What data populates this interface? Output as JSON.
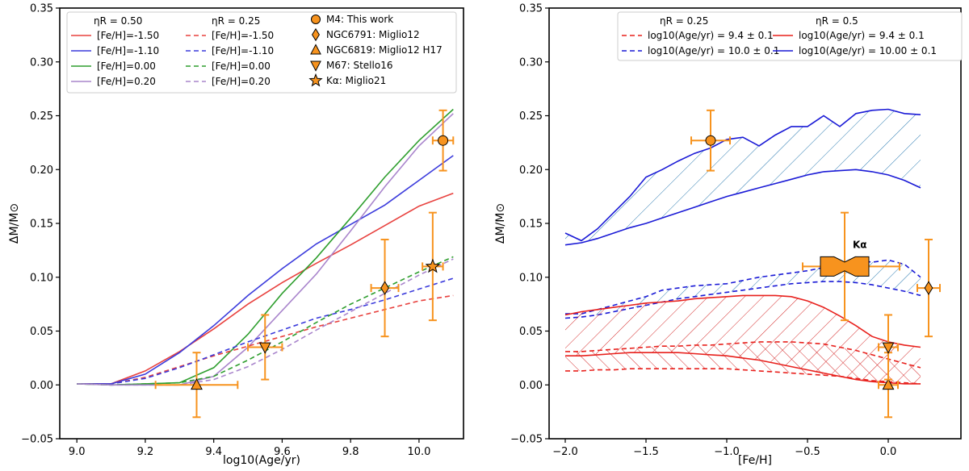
{
  "chart_data": [
    {
      "id": "left",
      "type": "line",
      "xlabel": "log10(Age/yr)",
      "ylabel": "ΔM/M⊙",
      "xlim": [
        8.95,
        10.13
      ],
      "ylim": [
        -0.05,
        0.35
      ],
      "xticks": [
        "9.0",
        "9.2",
        "9.4",
        "9.6",
        "9.8",
        "10.0"
      ],
      "xtick_values": [
        9.0,
        9.2,
        9.4,
        9.6,
        9.8,
        10.0
      ],
      "yticks": [
        "−0.05",
        "0.00",
        "0.05",
        "0.10",
        "0.15",
        "0.20",
        "0.25",
        "0.30",
        "0.35"
      ],
      "ytick_values": [
        -0.05,
        0.0,
        0.05,
        0.1,
        0.15,
        0.2,
        0.25,
        0.3,
        0.35
      ],
      "legend_headers": [
        "ηR = 0.50",
        "ηR = 0.25"
      ],
      "series": [
        {
          "name": "[Fe/H]=-1.50",
          "group": "ηR = 0.50",
          "color": "#e8423f",
          "dash": false,
          "x": [
            9.0,
            9.1,
            9.2,
            9.3,
            9.4,
            9.5,
            9.6,
            9.7,
            9.8,
            9.9,
            10.0,
            10.1
          ],
          "y": [
            0.001,
            0.001,
            0.013,
            0.031,
            0.052,
            0.075,
            0.095,
            0.113,
            0.13,
            0.148,
            0.166,
            0.178
          ]
        },
        {
          "name": "[Fe/H]=-1.10",
          "group": "ηR = 0.50",
          "color": "#3b3bdc",
          "dash": false,
          "x": [
            9.0,
            9.1,
            9.2,
            9.3,
            9.4,
            9.5,
            9.6,
            9.7,
            9.8,
            9.9,
            10.0,
            10.1
          ],
          "y": [
            0.001,
            0.001,
            0.01,
            0.03,
            0.055,
            0.083,
            0.108,
            0.131,
            0.149,
            0.167,
            0.19,
            0.213
          ]
        },
        {
          "name": "[Fe/H]=0.00",
          "group": "ηR = 0.50",
          "color": "#2e9e2e",
          "dash": false,
          "x": [
            9.0,
            9.1,
            9.2,
            9.3,
            9.4,
            9.5,
            9.6,
            9.7,
            9.8,
            9.9,
            10.0,
            10.1
          ],
          "y": [
            0.001,
            0.0,
            0.001,
            0.002,
            0.016,
            0.047,
            0.085,
            0.118,
            0.155,
            0.193,
            0.227,
            0.256
          ]
        },
        {
          "name": "[Fe/H]=0.20",
          "group": "ηR = 0.50",
          "color": "#a985cc",
          "dash": false,
          "x": [
            9.0,
            9.1,
            9.2,
            9.3,
            9.4,
            9.5,
            9.6,
            9.7,
            9.8,
            9.9,
            10.0,
            10.1
          ],
          "y": [
            0.001,
            0.0,
            0.0,
            0.0,
            0.008,
            0.035,
            0.069,
            0.103,
            0.143,
            0.184,
            0.222,
            0.252
          ]
        },
        {
          "name": "[Fe/H]=-1.50",
          "group": "ηR = 0.25",
          "color": "#e8423f",
          "dash": true,
          "x": [
            9.0,
            9.1,
            9.2,
            9.3,
            9.4,
            9.5,
            9.6,
            9.7,
            9.8,
            9.9,
            10.0,
            10.1
          ],
          "y": [
            0.001,
            0.001,
            0.007,
            0.017,
            0.027,
            0.036,
            0.045,
            0.054,
            0.062,
            0.07,
            0.078,
            0.083
          ]
        },
        {
          "name": "[Fe/H]=-1.10",
          "group": "ηR = 0.25",
          "color": "#3b3bdc",
          "dash": true,
          "x": [
            9.0,
            9.1,
            9.2,
            9.3,
            9.4,
            9.5,
            9.6,
            9.7,
            9.8,
            9.9,
            10.0,
            10.1
          ],
          "y": [
            0.001,
            0.001,
            0.006,
            0.016,
            0.028,
            0.04,
            0.051,
            0.062,
            0.07,
            0.079,
            0.089,
            0.099
          ]
        },
        {
          "name": "[Fe/H]=0.00",
          "group": "ηR = 0.25",
          "color": "#2e9e2e",
          "dash": true,
          "x": [
            9.0,
            9.1,
            9.2,
            9.3,
            9.4,
            9.5,
            9.6,
            9.7,
            9.8,
            9.9,
            10.0,
            10.1
          ],
          "y": [
            0.001,
            0.0,
            0.001,
            0.002,
            0.008,
            0.023,
            0.04,
            0.058,
            0.075,
            0.09,
            0.105,
            0.119
          ]
        },
        {
          "name": "[Fe/H]=0.20",
          "group": "ηR = 0.25",
          "color": "#a985cc",
          "dash": true,
          "x": [
            9.0,
            9.1,
            9.2,
            9.3,
            9.4,
            9.5,
            9.6,
            9.7,
            9.8,
            9.9,
            10.0,
            10.1
          ],
          "y": [
            0.001,
            0.0,
            0.0,
            0.0,
            0.005,
            0.017,
            0.033,
            0.051,
            0.068,
            0.085,
            0.102,
            0.117
          ]
        }
      ],
      "observations": [
        {
          "name": "M4: This work",
          "marker": "circle",
          "x": 10.07,
          "y": 0.227,
          "xerr": 0.03,
          "yerr": 0.028
        },
        {
          "name": "NGC6791: Miglio12",
          "marker": "diamond",
          "x": 9.9,
          "y": 0.09,
          "xerr": 0.04,
          "yerr": 0.045
        },
        {
          "name": "NGC6819: Miglio12 H17",
          "marker": "triangle-up",
          "x": 9.35,
          "y": 0.0,
          "xerr": 0.12,
          "yerr": 0.03
        },
        {
          "name": "M67: Stello16",
          "marker": "triangle-down",
          "x": 9.55,
          "y": 0.035,
          "xerr": 0.05,
          "yerr": 0.03
        },
        {
          "name": "Kα: Miglio21",
          "marker": "star",
          "x": 10.04,
          "y": 0.11,
          "xerr": 0.03,
          "yerr": 0.05
        }
      ]
    },
    {
      "id": "right",
      "type": "line",
      "xlabel": "[Fe/H]",
      "ylabel": "ΔM/M⊙",
      "xlim": [
        -2.1,
        0.45
      ],
      "ylim": [
        -0.05,
        0.35
      ],
      "xticks": [
        "−2.0",
        "−1.5",
        "−1.0",
        "−0.5",
        "0.0"
      ],
      "xtick_values": [
        -2.0,
        -1.5,
        -1.0,
        -0.5,
        0.0
      ],
      "yticks": [
        "−0.05",
        "0.00",
        "0.05",
        "0.10",
        "0.15",
        "0.20",
        "0.25",
        "0.30",
        "0.35"
      ],
      "ytick_values": [
        -0.05,
        0.0,
        0.05,
        0.1,
        0.15,
        0.2,
        0.25,
        0.3,
        0.35
      ],
      "legend_headers": [
        "ηR = 0.25",
        "ηR = 0.5"
      ],
      "legend_entries": [
        {
          "label": "log10(Age/yr) = 9.4 ± 0.1",
          "color": "#e8201c",
          "dash": true
        },
        {
          "label": "log10(Age/yr) = 10.0 ± 0.1",
          "color": "#1a1ad6",
          "dash": true
        },
        {
          "label": "log10(Age/yr) = 9.4 ± 0.1",
          "color": "#e8201c",
          "dash": false
        },
        {
          "label": "log10(Age/yr) = 10.00 ± 0.1",
          "color": "#1a1ad6",
          "dash": false
        }
      ],
      "bands": [
        {
          "name": "η0.5 age10.0",
          "color": "#1a1ad6",
          "hatch": "#2a7ab0",
          "dash": false,
          "x": [
            -2.0,
            -1.9,
            -1.8,
            -1.7,
            -1.6,
            -1.5,
            -1.4,
            -1.3,
            -1.2,
            -1.1,
            -1.0,
            -0.9,
            -0.8,
            -0.7,
            -0.6,
            -0.5,
            -0.4,
            -0.3,
            -0.2,
            -0.1,
            0.0,
            0.1,
            0.2
          ],
          "upper": [
            0.141,
            0.134,
            0.145,
            0.16,
            0.175,
            0.193,
            0.2,
            0.208,
            0.215,
            0.22,
            0.228,
            0.23,
            0.222,
            0.232,
            0.24,
            0.24,
            0.25,
            0.24,
            0.252,
            0.255,
            0.256,
            0.252,
            0.251
          ],
          "lower": [
            0.13,
            0.132,
            0.136,
            0.141,
            0.146,
            0.15,
            0.155,
            0.16,
            0.165,
            0.17,
            0.175,
            0.179,
            0.183,
            0.187,
            0.191,
            0.195,
            0.198,
            0.199,
            0.2,
            0.198,
            0.195,
            0.19,
            0.183
          ]
        },
        {
          "name": "η0.25 age10.0",
          "color": "#1a1ad6",
          "hatch": "#2a7ab0",
          "dash": true,
          "x": [
            -2.0,
            -1.9,
            -1.8,
            -1.7,
            -1.6,
            -1.5,
            -1.4,
            -1.3,
            -1.2,
            -1.1,
            -1.0,
            -0.9,
            -0.8,
            -0.7,
            -0.6,
            -0.5,
            -0.4,
            -0.3,
            -0.2,
            -0.1,
            0.0,
            0.1,
            0.2
          ],
          "upper": [
            0.066,
            0.066,
            0.07,
            0.074,
            0.078,
            0.082,
            0.088,
            0.09,
            0.092,
            0.093,
            0.094,
            0.097,
            0.1,
            0.102,
            0.104,
            0.106,
            0.109,
            0.111,
            0.116,
            0.114,
            0.116,
            0.112,
            0.1
          ],
          "lower": [
            0.062,
            0.063,
            0.065,
            0.068,
            0.071,
            0.074,
            0.077,
            0.08,
            0.082,
            0.084,
            0.086,
            0.088,
            0.09,
            0.092,
            0.094,
            0.095,
            0.096,
            0.096,
            0.095,
            0.093,
            0.09,
            0.087,
            0.083
          ]
        },
        {
          "name": "η0.5 age9.4",
          "color": "#e8201c",
          "hatch": "#d42a2a",
          "dash": false,
          "x": [
            -2.0,
            -1.9,
            -1.8,
            -1.7,
            -1.6,
            -1.5,
            -1.4,
            -1.3,
            -1.2,
            -1.1,
            -1.0,
            -0.9,
            -0.8,
            -0.7,
            -0.6,
            -0.5,
            -0.4,
            -0.3,
            -0.2,
            -0.1,
            0.0,
            0.1,
            0.2
          ],
          "upper": [
            0.065,
            0.068,
            0.07,
            0.072,
            0.074,
            0.076,
            0.077,
            0.078,
            0.08,
            0.081,
            0.082,
            0.083,
            0.083,
            0.083,
            0.082,
            0.078,
            0.072,
            0.064,
            0.055,
            0.045,
            0.04,
            0.037,
            0.035
          ],
          "lower": [
            0.027,
            0.027,
            0.028,
            0.029,
            0.03,
            0.03,
            0.03,
            0.03,
            0.029,
            0.028,
            0.027,
            0.025,
            0.023,
            0.02,
            0.017,
            0.014,
            0.011,
            0.008,
            0.005,
            0.003,
            0.002,
            0.001,
            0.001
          ]
        },
        {
          "name": "η0.25 age9.4",
          "color": "#e8201c",
          "hatch": "#d42a2a",
          "dash": true,
          "x": [
            -2.0,
            -1.9,
            -1.8,
            -1.7,
            -1.6,
            -1.5,
            -1.4,
            -1.3,
            -1.2,
            -1.1,
            -1.0,
            -0.9,
            -0.8,
            -0.7,
            -0.6,
            -0.5,
            -0.4,
            -0.3,
            -0.2,
            -0.1,
            0.0,
            0.1,
            0.2
          ],
          "upper": [
            0.031,
            0.031,
            0.032,
            0.033,
            0.034,
            0.035,
            0.036,
            0.036,
            0.037,
            0.037,
            0.038,
            0.039,
            0.04,
            0.04,
            0.04,
            0.039,
            0.038,
            0.035,
            0.032,
            0.028,
            0.024,
            0.02,
            0.016
          ],
          "lower": [
            0.013,
            0.013,
            0.014,
            0.014,
            0.015,
            0.015,
            0.015,
            0.015,
            0.015,
            0.015,
            0.015,
            0.014,
            0.013,
            0.012,
            0.011,
            0.01,
            0.009,
            0.008,
            0.006,
            0.004,
            0.003,
            0.002,
            0.001
          ]
        }
      ],
      "observations": [
        {
          "name": "M4",
          "marker": "circle",
          "x": -1.1,
          "y": 0.227,
          "xerr": 0.12,
          "yerr": 0.028
        },
        {
          "name": "NGC6791",
          "marker": "diamond",
          "x": 0.25,
          "y": 0.09,
          "xerr": 0.07,
          "yerr": 0.045
        },
        {
          "name": "NGC6819",
          "marker": "triangle-up",
          "x": 0.0,
          "y": 0.0,
          "xerr": 0.06,
          "yerr": 0.03
        },
        {
          "name": "M67",
          "marker": "triangle-down",
          "x": 0.0,
          "y": 0.035,
          "xerr": 0.06,
          "yerr": 0.03
        }
      ],
      "kalpha": {
        "label": "Kα",
        "x": -0.27,
        "y": 0.11,
        "xmin": -0.42,
        "xmax": -0.12,
        "lo": 0.101,
        "hi": 0.119,
        "notch": 0.103,
        "xerr_lo": -0.53,
        "xerr_hi": 0.07,
        "yerr": 0.05
      }
    }
  ],
  "colors": {
    "obs": "#f7931e",
    "obs_err": "#f7931e"
  }
}
